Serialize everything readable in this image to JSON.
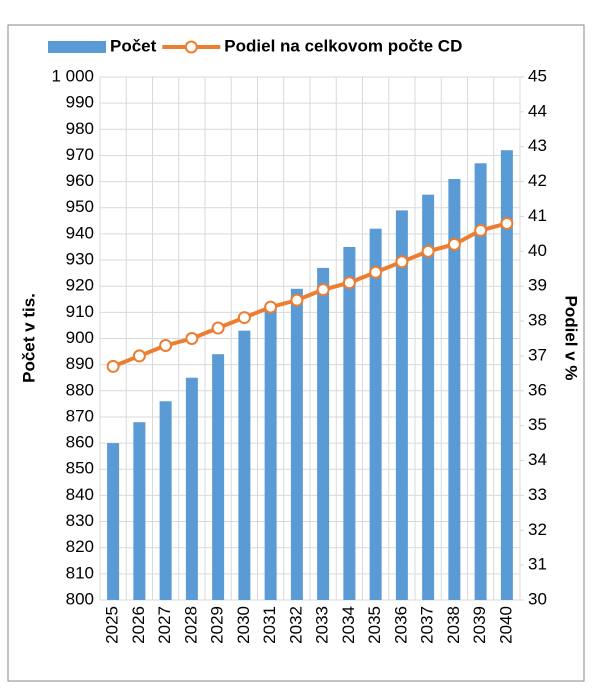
{
  "chart_data": {
    "type": "bar-line",
    "y_label": "Počet v tis.",
    "y2_label": "Podiel v %",
    "categories": [
      "2025",
      "2026",
      "2027",
      "2028",
      "2029",
      "2030",
      "2031",
      "2032",
      "2033",
      "2034",
      "2035",
      "2036",
      "2037",
      "2038",
      "2039",
      "2040"
    ],
    "series": [
      {
        "name": "Počet",
        "type": "bar",
        "color": "#5b9bd5",
        "values": [
          860,
          868,
          876,
          885,
          894,
          903,
          911,
          919,
          927,
          935,
          942,
          949,
          955,
          961,
          967,
          972
        ]
      },
      {
        "name": "Podiel na celkovom počte CD",
        "type": "line",
        "axis": "y2",
        "color": "#ed7d31",
        "values": [
          36.7,
          37.0,
          37.3,
          37.5,
          37.8,
          38.1,
          38.4,
          38.6,
          38.9,
          39.1,
          39.4,
          39.7,
          40.0,
          40.2,
          40.6,
          40.8
        ]
      }
    ],
    "ylim": [
      800,
      1000
    ],
    "yticks": [
      800,
      810,
      820,
      830,
      840,
      850,
      860,
      870,
      880,
      890,
      900,
      910,
      920,
      930,
      940,
      950,
      960,
      970,
      980,
      990,
      {
        "value": 1000,
        "label": "1 000"
      }
    ],
    "y2lim": [
      30,
      45
    ],
    "y2ticks": [
      30,
      31,
      32,
      33,
      34,
      35,
      36,
      37,
      38,
      39,
      40,
      41,
      42,
      43,
      44,
      45
    ],
    "grid": true,
    "legend": "top"
  }
}
